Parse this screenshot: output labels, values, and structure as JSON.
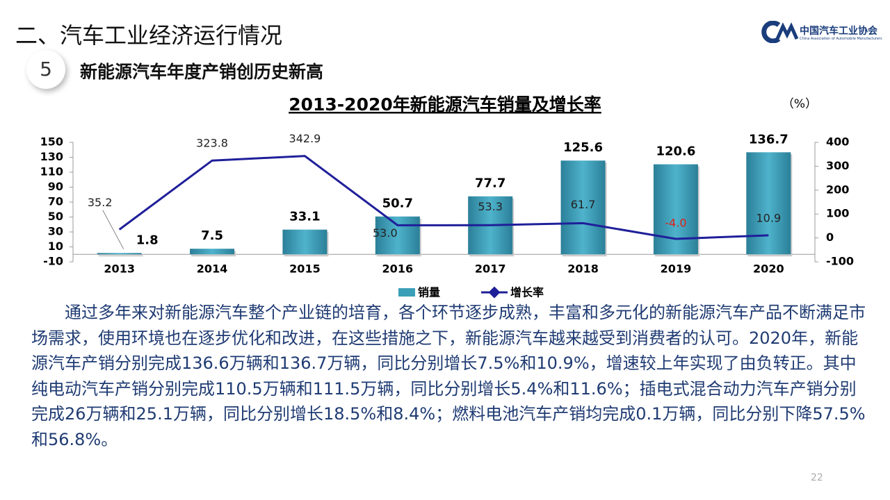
{
  "header": {
    "section": "二、汽车工业经济运行情况",
    "number": "5",
    "subtitle": "新能源汽车年度产销创历史新高",
    "logo": "中国汽车工业协会",
    "logo_en": "China Association of Automobile Manufacturers"
  },
  "chart_data": {
    "type": "bar-line",
    "title": "2013-2020年新能源汽车销量及增长率",
    "y2_label": "（%）",
    "categories": [
      "2013",
      "2014",
      "2015",
      "2016",
      "2017",
      "2018",
      "2019",
      "2020"
    ],
    "series": [
      {
        "name": "销量",
        "type": "bar",
        "color": "#3a9fb7",
        "values": [
          1.8,
          7.5,
          33.1,
          50.7,
          77.7,
          125.6,
          120.6,
          136.7
        ]
      },
      {
        "name": "增长率",
        "type": "line",
        "axis": "y2",
        "color": "#1f1f9a",
        "values": [
          35.2,
          323.8,
          342.9,
          53.0,
          53.3,
          61.7,
          -4.0,
          10.9
        ],
        "value_labels": [
          "35.2",
          "323.8",
          "342.9",
          "53.0",
          "53.3",
          "61.7",
          "-4.0",
          "10.9"
        ]
      }
    ],
    "ylim": [
      -10,
      150
    ],
    "yticks": [
      -10,
      10,
      30,
      50,
      70,
      90,
      110,
      130,
      150
    ],
    "y2lim": [
      -100,
      400
    ],
    "y2ticks": [
      -100,
      0,
      100,
      200,
      300,
      400
    ],
    "negative_label_color": "#e0201a",
    "legend": "bottom"
  },
  "paragraph": "通过多年来对新能源汽车整个产业链的培育，各个环节逐步成熟，丰富和多元化的新能源汽车产品不断满足市场需求，使用环境也在逐步优化和改进，在这些措施之下，新能源汽车越来越受到消费者的认可。2020年，新能源汽车产销分别完成136.6万辆和136.7万辆，同比分别增长7.5%和10.9%，增速较上年实现了由负转正。其中纯电动汽车产销分别完成110.5万辆和111.5万辆，同比分别增长5.4%和11.6%；插电式混合动力汽车产销分别完成26万辆和25.1万辆，同比分别增长18.5%和8.4%；燃料电池汽车产销均完成0.1万辆，同比分别下降57.5%和56.8%。",
  "page_number": "22"
}
